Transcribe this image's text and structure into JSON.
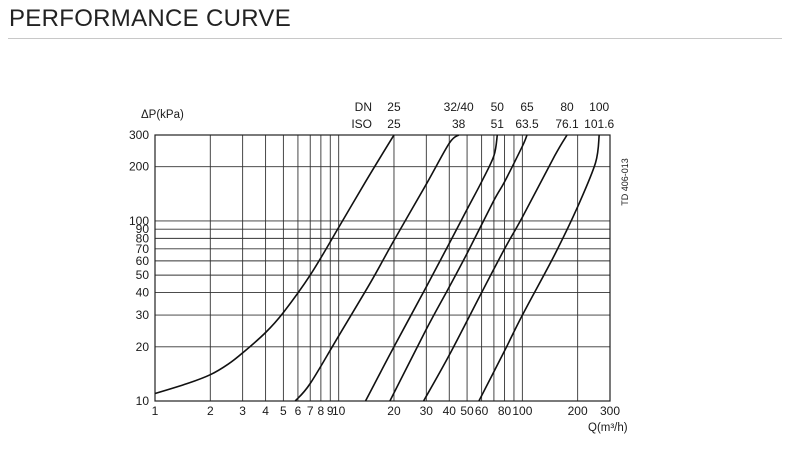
{
  "page": {
    "title": "PERFORMANCE CURVE"
  },
  "chart_data": {
    "type": "line",
    "title": "",
    "xlabel": "Q(m³/h)",
    "ylabel": "ΔP(kPa)",
    "x_scale": "log",
    "y_scale": "log",
    "xlim": [
      1,
      300
    ],
    "ylim": [
      10,
      300
    ],
    "grid": true,
    "x_ticks": [
      1,
      2,
      3,
      4,
      5,
      6,
      7,
      8,
      9,
      10,
      20,
      30,
      40,
      50,
      60,
      70,
      80,
      90,
      100,
      200,
      300
    ],
    "x_tick_labels": [
      "1",
      "2",
      "3",
      "4",
      "5",
      "6",
      "7",
      "8",
      "9",
      "10",
      "20",
      "30",
      "40",
      "50",
      "60",
      "80",
      "100",
      "200",
      "300"
    ],
    "y_ticks": [
      10,
      20,
      30,
      40,
      50,
      60,
      70,
      80,
      90,
      100,
      200,
      300
    ],
    "y_tick_labels": [
      "10",
      "20",
      "30",
      "40",
      "50",
      "60",
      "70",
      "80",
      "90",
      "100",
      "200",
      "300"
    ],
    "size_header": {
      "dn_label": "DN",
      "iso_label": "ISO"
    },
    "doc_ref": "TD 406-013",
    "series": [
      {
        "dn": "25",
        "iso": "25",
        "x": [
          1,
          1.5,
          2,
          2.5,
          3,
          4,
          5,
          7,
          10,
          14,
          20
        ],
        "y": [
          11,
          12.5,
          14,
          16,
          18.5,
          24,
          31,
          50,
          92,
          165,
          300
        ]
      },
      {
        "dn": "32/40",
        "iso": "38",
        "x": [
          5.8,
          7,
          10,
          15,
          20,
          30,
          40,
          45
        ],
        "y": [
          10,
          12.5,
          23,
          46,
          78,
          160,
          270,
          300
        ]
      },
      {
        "dn": "50",
        "iso": "51",
        "x": [
          14,
          20,
          30,
          40,
          50,
          60,
          70,
          73
        ],
        "y": [
          10,
          20,
          43,
          75,
          116,
          165,
          230,
          300
        ]
      },
      {
        "dn": "65",
        "iso": "63.5",
        "x": [
          19,
          30,
          40,
          50,
          70,
          80,
          100,
          106
        ],
        "y": [
          10,
          25,
          43,
          66,
          130,
          165,
          260,
          300
        ]
      },
      {
        "dn": "80",
        "iso": "76.1",
        "x": [
          29,
          40,
          60,
          80,
          100,
          150,
          175
        ],
        "y": [
          10,
          18,
          40,
          70,
          105,
          230,
          300
        ]
      },
      {
        "dn": "100",
        "iso": "101.6",
        "x": [
          58,
          80,
          100,
          150,
          200,
          250,
          262
        ],
        "y": [
          10,
          19,
          30,
          65,
          120,
          210,
          300
        ]
      }
    ]
  }
}
